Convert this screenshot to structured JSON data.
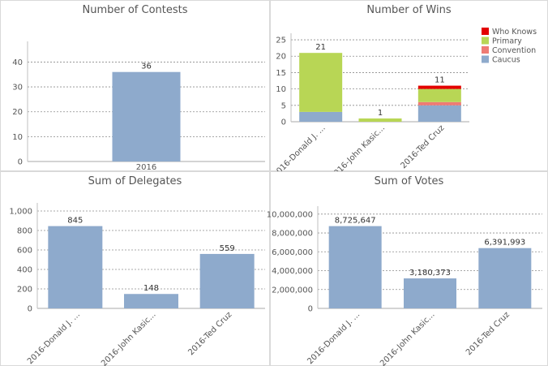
{
  "chart_data": [
    {
      "id": "contests",
      "type": "bar",
      "title": "Number of Contests",
      "categories": [
        "2016"
      ],
      "values": [
        36
      ],
      "data_labels": [
        "36"
      ],
      "ylim": [
        0,
        47
      ],
      "yticks": [
        0,
        10,
        20,
        30,
        40
      ],
      "ytick_labels": [
        "0",
        "10",
        "20",
        "30",
        "40"
      ],
      "xlabel": "",
      "ylabel": "",
      "grid": true,
      "color": "#8eaacc"
    },
    {
      "id": "wins",
      "type": "bar",
      "stacked": true,
      "title": "Number of Wins",
      "categories": [
        "2016-Donald J. ...",
        "2016-John Kasic...",
        "2016-Ted Cruz"
      ],
      "series": [
        {
          "name": "Caucus",
          "color": "#8eaacc",
          "values": [
            3,
            0,
            5
          ]
        },
        {
          "name": "Convention",
          "color": "#ee7b74",
          "values": [
            0,
            0,
            1
          ]
        },
        {
          "name": "Primary",
          "color": "#b8d655",
          "values": [
            18,
            1,
            4
          ]
        },
        {
          "name": "Who Knows",
          "color": "#e30000",
          "values": [
            0,
            0,
            1
          ]
        }
      ],
      "totals": [
        21,
        1,
        11
      ],
      "data_labels": [
        "21",
        "1",
        "11"
      ],
      "legend": {
        "position": "top-right",
        "order": [
          "Who Knows",
          "Primary",
          "Convention",
          "Caucus"
        ]
      },
      "ylim": [
        0,
        26
      ],
      "yticks": [
        0,
        5,
        10,
        15,
        20,
        25
      ],
      "ytick_labels": [
        "0",
        "5",
        "10",
        "15",
        "20",
        "25"
      ],
      "xlabel": "",
      "ylabel": "",
      "grid": true
    },
    {
      "id": "delegates",
      "type": "bar",
      "title": "Sum of Delegates",
      "categories": [
        "2016-Donald J. ...",
        "2016-John Kasic...",
        "2016-Ted Cruz"
      ],
      "values": [
        845,
        148,
        559
      ],
      "data_labels": [
        "845",
        "148",
        "559"
      ],
      "ylim": [
        0,
        1050
      ],
      "yticks": [
        0,
        200,
        400,
        600,
        800,
        1000
      ],
      "ytick_labels": [
        "0",
        "200",
        "400",
        "600",
        "800",
        "1,000"
      ],
      "xlabel": "",
      "ylabel": "",
      "grid": true,
      "color": "#8eaacc"
    },
    {
      "id": "votes",
      "type": "bar",
      "title": "Sum of Votes",
      "categories": [
        "2016-Donald J. ...",
        "2016-John Kasic...",
        "2016-Ted Cruz"
      ],
      "values": [
        8725647,
        3180373,
        6391993
      ],
      "data_labels": [
        "8,725,647",
        "3,180,373",
        "6,391,993"
      ],
      "ylim": [
        0,
        10500000
      ],
      "yticks": [
        0,
        2000000,
        4000000,
        6000000,
        8000000,
        10000000
      ],
      "ytick_labels": [
        "0",
        "2,000,000",
        "4,000,000",
        "6,000,000",
        "8,000,000",
        "10,000,000"
      ],
      "xlabel": "",
      "ylabel": "",
      "grid": true,
      "color": "#8eaacc"
    }
  ]
}
